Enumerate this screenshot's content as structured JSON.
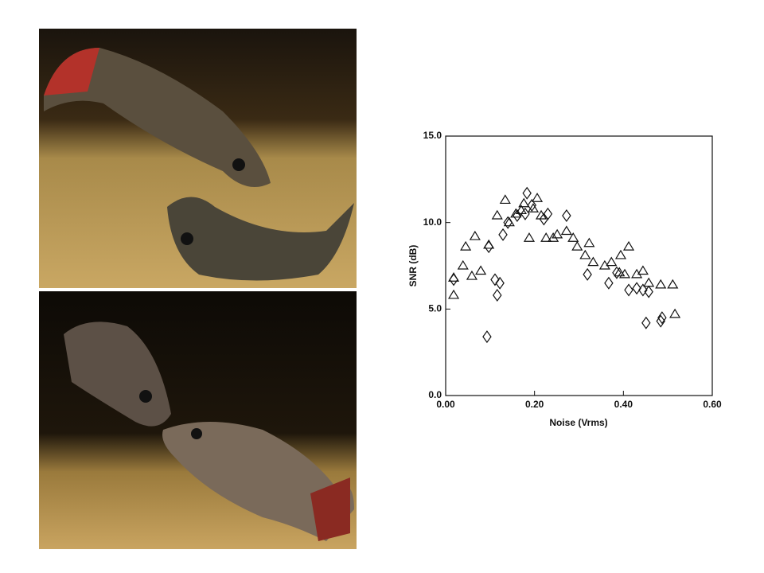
{
  "chart_data": {
    "type": "scatter",
    "xlabel": "Noise  (Vrms)",
    "ylabel": "SNR  (dB)",
    "xlim": [
      0,
      0.6
    ],
    "ylim": [
      0,
      15
    ],
    "xticks": [
      {
        "value": 0,
        "label": "0.00"
      },
      {
        "value": 0.2,
        "label": "0.20"
      },
      {
        "value": 0.4,
        "label": "0.40"
      },
      {
        "value": 0.6,
        "label": "0.60"
      }
    ],
    "yticks": [
      {
        "value": 0,
        "label": "0.0"
      },
      {
        "value": 5,
        "label": "5.0"
      },
      {
        "value": 10,
        "label": "10.0"
      },
      {
        "value": 15,
        "label": "15.0"
      }
    ],
    "series": [
      {
        "marker": "triangle",
        "color": "#111111",
        "x": [
          0.018,
          0.018,
          0.039,
          0.045,
          0.066,
          0.079,
          0.059,
          0.097,
          0.116,
          0.134,
          0.143,
          0.158,
          0.17,
          0.176,
          0.188,
          0.197,
          0.206,
          0.215,
          0.226,
          0.242,
          0.251,
          0.272,
          0.287,
          0.296,
          0.314,
          0.323,
          0.332,
          0.358,
          0.373,
          0.391,
          0.394,
          0.403,
          0.412,
          0.43,
          0.444,
          0.457,
          0.484,
          0.511,
          0.516
        ],
        "values": [
          6.8,
          5.8,
          7.5,
          8.6,
          9.2,
          7.2,
          6.9,
          8.7,
          10.4,
          11.3,
          10.0,
          10.5,
          10.7,
          11.1,
          9.1,
          10.8,
          11.4,
          10.4,
          9.1,
          9.1,
          9.3,
          9.5,
          9.1,
          8.6,
          8.1,
          8.8,
          7.7,
          7.5,
          7.7,
          7.1,
          8.1,
          7.0,
          8.6,
          7.0,
          7.2,
          6.5,
          6.4,
          6.4,
          4.7
        ]
      },
      {
        "marker": "diamond",
        "color": "#111111",
        "x": [
          0.018,
          0.097,
          0.111,
          0.116,
          0.122,
          0.093,
          0.129,
          0.14,
          0.161,
          0.179,
          0.183,
          0.194,
          0.221,
          0.23,
          0.272,
          0.319,
          0.367,
          0.385,
          0.412,
          0.43,
          0.444,
          0.451,
          0.484,
          0.487,
          0.457
        ],
        "values": [
          6.7,
          8.6,
          6.7,
          5.8,
          6.5,
          3.4,
          9.3,
          10.0,
          10.4,
          10.5,
          11.7,
          11.0,
          10.2,
          10.5,
          10.4,
          7.0,
          6.5,
          7.1,
          6.1,
          6.2,
          6.1,
          4.2,
          4.3,
          4.5,
          6.0
        ]
      }
    ]
  }
}
